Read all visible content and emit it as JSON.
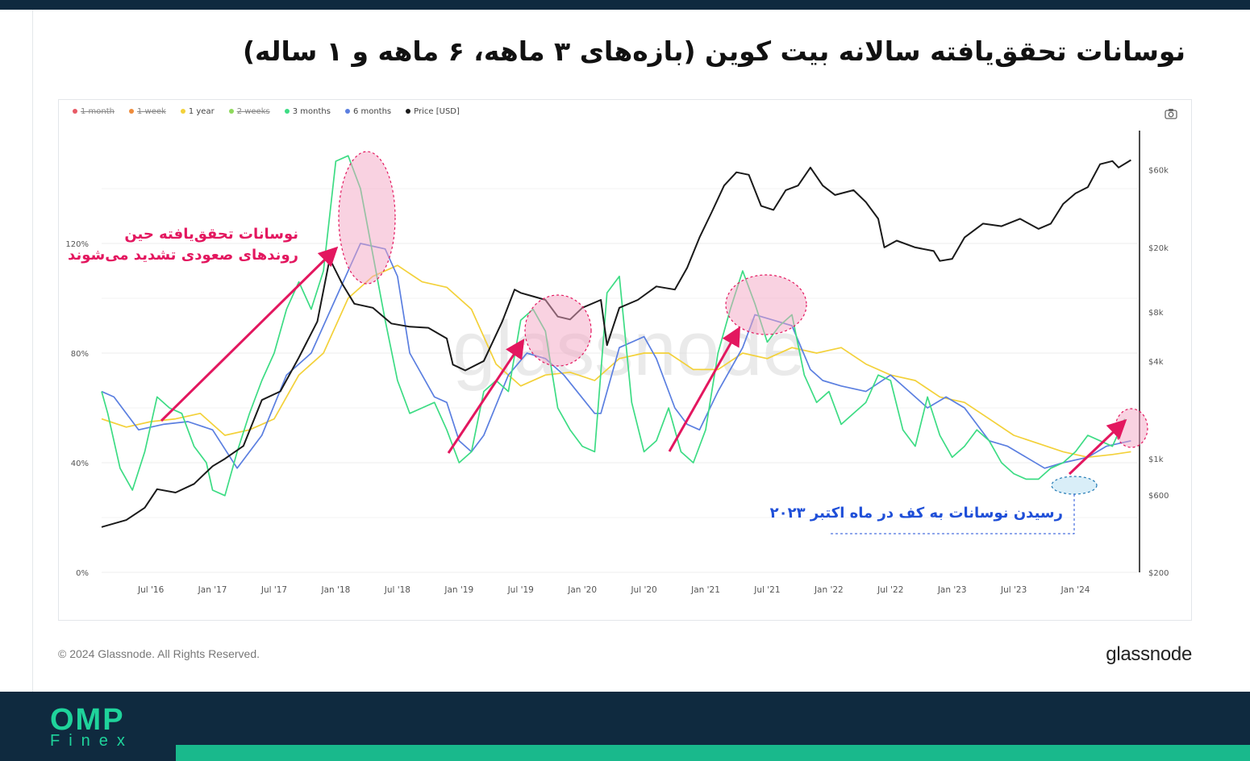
{
  "title": "نوسانات تحقق‌یافته سالانه بیت کوین (بازه‌های ۳ ماهه، ۶ ماهه و ۱ ساله)",
  "annotations": {
    "rising": [
      "نوسانات تحقق‌یافته حین",
      "روندهای صعودی تشدید می‌شوند"
    ],
    "bottom": "رسیدن نوسانات به کف در ماه اکتبر ۲۰۲۳"
  },
  "watermark": "glassnode",
  "copyright": "© 2024 Glassnode. All Rights Reserved.",
  "brand_logo": "glassnode",
  "footer_logo": {
    "main": "OMP",
    "sub": "Finex"
  },
  "colors": {
    "vol_1y": "#f3d13a",
    "vol_3m": "#3ddc84",
    "vol_6m": "#5b7fe0",
    "price": "#1a1a1a",
    "highlight": "#e3175f",
    "highlight_blue": "#1f4fd8",
    "brand_dark": "#0f2a3f",
    "brand_green": "#1fd39b"
  },
  "chart_data": {
    "type": "line",
    "legend": [
      {
        "name": "1 month",
        "color": "#e85a66",
        "enabled": false
      },
      {
        "name": "1 week",
        "color": "#ef8c3c",
        "enabled": false
      },
      {
        "name": "1 year",
        "color": "#f3d13a",
        "enabled": true
      },
      {
        "name": "2 weeks",
        "color": "#8ed95c",
        "enabled": false
      },
      {
        "name": "3 months",
        "color": "#3ddc84",
        "enabled": true
      },
      {
        "name": "6 months",
        "color": "#5b7fe0",
        "enabled": true
      },
      {
        "name": "Price [USD]",
        "color": "#1a1a1a",
        "enabled": true
      }
    ],
    "x_labels": [
      "Jul '16",
      "Jan '17",
      "Jul '17",
      "Jan '18",
      "Jul '18",
      "Jan '19",
      "Jul '19",
      "Jan '20",
      "Jul '20",
      "Jan '21",
      "Jul '21",
      "Jan '22",
      "Jul '22",
      "Jan '23",
      "Jul '23",
      "Jan '24"
    ],
    "x_range": [
      2016.1,
      2024.5
    ],
    "y_left": {
      "ticks": [
        "0%",
        "40%",
        "80%",
        "120%"
      ],
      "values": [
        0,
        40,
        80,
        120
      ],
      "range": [
        0,
        160
      ]
    },
    "y_right": {
      "scale": "log",
      "ticks": [
        "$200",
        "$600",
        "$1k",
        "$4k",
        "$8k",
        "$20k",
        "$60k"
      ],
      "values": [
        200,
        600,
        1000,
        4000,
        8000,
        20000,
        60000
      ],
      "range": [
        200,
        100000
      ]
    },
    "series": [
      {
        "name": "1 year",
        "axis": "left",
        "points": [
          [
            2016.1,
            56
          ],
          [
            2016.3,
            53
          ],
          [
            2016.5,
            55
          ],
          [
            2016.7,
            56
          ],
          [
            2016.9,
            58
          ],
          [
            2017.1,
            50
          ],
          [
            2017.3,
            52
          ],
          [
            2017.5,
            56
          ],
          [
            2017.7,
            72
          ],
          [
            2017.9,
            80
          ],
          [
            2018.1,
            100
          ],
          [
            2018.3,
            108
          ],
          [
            2018.5,
            112
          ],
          [
            2018.7,
            106
          ],
          [
            2018.9,
            104
          ],
          [
            2019.1,
            96
          ],
          [
            2019.3,
            76
          ],
          [
            2019.5,
            68
          ],
          [
            2019.7,
            72
          ],
          [
            2019.9,
            73
          ],
          [
            2020.1,
            70
          ],
          [
            2020.3,
            78
          ],
          [
            2020.5,
            80
          ],
          [
            2020.7,
            80
          ],
          [
            2020.9,
            74
          ],
          [
            2021.1,
            74
          ],
          [
            2021.3,
            80
          ],
          [
            2021.5,
            78
          ],
          [
            2021.7,
            82
          ],
          [
            2021.9,
            80
          ],
          [
            2022.1,
            82
          ],
          [
            2022.3,
            76
          ],
          [
            2022.5,
            72
          ],
          [
            2022.7,
            70
          ],
          [
            2022.9,
            64
          ],
          [
            2023.1,
            62
          ],
          [
            2023.3,
            56
          ],
          [
            2023.5,
            50
          ],
          [
            2023.7,
            47
          ],
          [
            2023.9,
            44
          ],
          [
            2024.1,
            42
          ],
          [
            2024.3,
            43
          ],
          [
            2024.45,
            44
          ]
        ]
      },
      {
        "name": "6 months",
        "axis": "left",
        "points": [
          [
            2016.1,
            66
          ],
          [
            2016.2,
            64
          ],
          [
            2016.4,
            52
          ],
          [
            2016.6,
            54
          ],
          [
            2016.8,
            55
          ],
          [
            2017.0,
            52
          ],
          [
            2017.2,
            38
          ],
          [
            2017.4,
            50
          ],
          [
            2017.6,
            72
          ],
          [
            2017.8,
            80
          ],
          [
            2018.0,
            100
          ],
          [
            2018.2,
            120
          ],
          [
            2018.4,
            118
          ],
          [
            2018.5,
            108
          ],
          [
            2018.6,
            80
          ],
          [
            2018.8,
            64
          ],
          [
            2018.9,
            62
          ],
          [
            2019.0,
            48
          ],
          [
            2019.1,
            44
          ],
          [
            2019.2,
            50
          ],
          [
            2019.4,
            72
          ],
          [
            2019.55,
            80
          ],
          [
            2019.7,
            78
          ],
          [
            2019.85,
            72
          ],
          [
            2020.1,
            58
          ],
          [
            2020.15,
            58
          ],
          [
            2020.3,
            82
          ],
          [
            2020.5,
            86
          ],
          [
            2020.6,
            78
          ],
          [
            2020.75,
            60
          ],
          [
            2020.85,
            54
          ],
          [
            2020.95,
            52
          ],
          [
            2021.1,
            66
          ],
          [
            2021.3,
            82
          ],
          [
            2021.4,
            94
          ],
          [
            2021.55,
            92
          ],
          [
            2021.7,
            90
          ],
          [
            2021.85,
            74
          ],
          [
            2021.95,
            70
          ],
          [
            2022.1,
            68
          ],
          [
            2022.3,
            66
          ],
          [
            2022.5,
            72
          ],
          [
            2022.7,
            64
          ],
          [
            2022.8,
            60
          ],
          [
            2022.95,
            64
          ],
          [
            2023.1,
            60
          ],
          [
            2023.3,
            48
          ],
          [
            2023.45,
            46
          ],
          [
            2023.6,
            42
          ],
          [
            2023.75,
            38
          ],
          [
            2023.9,
            40
          ],
          [
            2024.1,
            42
          ],
          [
            2024.25,
            46
          ],
          [
            2024.45,
            48
          ]
        ]
      },
      {
        "name": "3 months",
        "axis": "left",
        "points": [
          [
            2016.1,
            66
          ],
          [
            2016.15,
            58
          ],
          [
            2016.25,
            38
          ],
          [
            2016.35,
            30
          ],
          [
            2016.45,
            44
          ],
          [
            2016.55,
            64
          ],
          [
            2016.65,
            60
          ],
          [
            2016.75,
            58
          ],
          [
            2016.85,
            46
          ],
          [
            2016.95,
            40
          ],
          [
            2017.0,
            30
          ],
          [
            2017.1,
            28
          ],
          [
            2017.2,
            44
          ],
          [
            2017.3,
            58
          ],
          [
            2017.4,
            70
          ],
          [
            2017.5,
            80
          ],
          [
            2017.6,
            96
          ],
          [
            2017.7,
            106
          ],
          [
            2017.8,
            96
          ],
          [
            2017.9,
            110
          ],
          [
            2018.0,
            150
          ],
          [
            2018.1,
            152
          ],
          [
            2018.2,
            140
          ],
          [
            2018.3,
            116
          ],
          [
            2018.4,
            92
          ],
          [
            2018.5,
            70
          ],
          [
            2018.6,
            58
          ],
          [
            2018.7,
            60
          ],
          [
            2018.8,
            62
          ],
          [
            2018.9,
            52
          ],
          [
            2019.0,
            40
          ],
          [
            2019.1,
            44
          ],
          [
            2019.2,
            66
          ],
          [
            2019.3,
            70
          ],
          [
            2019.4,
            66
          ],
          [
            2019.5,
            92
          ],
          [
            2019.6,
            96
          ],
          [
            2019.7,
            88
          ],
          [
            2019.8,
            60
          ],
          [
            2019.9,
            52
          ],
          [
            2020.0,
            46
          ],
          [
            2020.1,
            44
          ],
          [
            2020.2,
            102
          ],
          [
            2020.3,
            108
          ],
          [
            2020.4,
            62
          ],
          [
            2020.5,
            44
          ],
          [
            2020.6,
            48
          ],
          [
            2020.7,
            60
          ],
          [
            2020.8,
            44
          ],
          [
            2020.9,
            40
          ],
          [
            2021.0,
            52
          ],
          [
            2021.1,
            80
          ],
          [
            2021.2,
            96
          ],
          [
            2021.3,
            110
          ],
          [
            2021.4,
            98
          ],
          [
            2021.5,
            84
          ],
          [
            2021.6,
            90
          ],
          [
            2021.7,
            94
          ],
          [
            2021.8,
            72
          ],
          [
            2021.9,
            62
          ],
          [
            2022.0,
            66
          ],
          [
            2022.1,
            54
          ],
          [
            2022.2,
            58
          ],
          [
            2022.3,
            62
          ],
          [
            2022.4,
            72
          ],
          [
            2022.5,
            70
          ],
          [
            2022.6,
            52
          ],
          [
            2022.7,
            46
          ],
          [
            2022.8,
            64
          ],
          [
            2022.9,
            50
          ],
          [
            2023.0,
            42
          ],
          [
            2023.1,
            46
          ],
          [
            2023.2,
            52
          ],
          [
            2023.3,
            48
          ],
          [
            2023.4,
            40
          ],
          [
            2023.5,
            36
          ],
          [
            2023.6,
            34
          ],
          [
            2023.7,
            34
          ],
          [
            2023.8,
            38
          ],
          [
            2023.9,
            40
          ],
          [
            2024.0,
            44
          ],
          [
            2024.1,
            50
          ],
          [
            2024.2,
            48
          ],
          [
            2024.3,
            46
          ],
          [
            2024.4,
            56
          ]
        ]
      },
      {
        "name": "Price [USD]",
        "axis": "right",
        "points": [
          [
            2016.1,
            380
          ],
          [
            2016.3,
            420
          ],
          [
            2016.45,
            500
          ],
          [
            2016.55,
            650
          ],
          [
            2016.7,
            620
          ],
          [
            2016.85,
            700
          ],
          [
            2017.0,
            900
          ],
          [
            2017.1,
            1000
          ],
          [
            2017.25,
            1200
          ],
          [
            2017.4,
            2300
          ],
          [
            2017.55,
            2600
          ],
          [
            2017.7,
            4200
          ],
          [
            2017.85,
            7000
          ],
          [
            2017.95,
            17000
          ],
          [
            2018.05,
            12000
          ],
          [
            2018.15,
            9000
          ],
          [
            2018.3,
            8500
          ],
          [
            2018.45,
            6800
          ],
          [
            2018.6,
            6500
          ],
          [
            2018.75,
            6400
          ],
          [
            2018.9,
            5500
          ],
          [
            2018.95,
            3800
          ],
          [
            2019.05,
            3500
          ],
          [
            2019.2,
            4000
          ],
          [
            2019.35,
            7000
          ],
          [
            2019.45,
            11000
          ],
          [
            2019.5,
            10500
          ],
          [
            2019.6,
            10000
          ],
          [
            2019.7,
            9500
          ],
          [
            2019.8,
            7500
          ],
          [
            2019.9,
            7200
          ],
          [
            2020.0,
            8500
          ],
          [
            2020.15,
            9500
          ],
          [
            2020.2,
            5000
          ],
          [
            2020.3,
            8500
          ],
          [
            2020.45,
            9500
          ],
          [
            2020.6,
            11500
          ],
          [
            2020.75,
            11000
          ],
          [
            2020.85,
            15000
          ],
          [
            2020.95,
            23000
          ],
          [
            2021.05,
            33000
          ],
          [
            2021.15,
            48000
          ],
          [
            2021.25,
            58000
          ],
          [
            2021.35,
            56000
          ],
          [
            2021.45,
            36000
          ],
          [
            2021.55,
            34000
          ],
          [
            2021.65,
            45000
          ],
          [
            2021.75,
            48000
          ],
          [
            2021.85,
            62000
          ],
          [
            2021.95,
            48000
          ],
          [
            2022.05,
            42000
          ],
          [
            2022.2,
            45000
          ],
          [
            2022.3,
            38000
          ],
          [
            2022.4,
            30000
          ],
          [
            2022.45,
            20000
          ],
          [
            2022.55,
            22000
          ],
          [
            2022.7,
            20000
          ],
          [
            2022.85,
            19000
          ],
          [
            2022.9,
            16500
          ],
          [
            2023.0,
            17000
          ],
          [
            2023.1,
            23000
          ],
          [
            2023.25,
            28000
          ],
          [
            2023.4,
            27000
          ],
          [
            2023.55,
            30000
          ],
          [
            2023.7,
            26000
          ],
          [
            2023.8,
            28000
          ],
          [
            2023.9,
            37000
          ],
          [
            2024.0,
            43000
          ],
          [
            2024.1,
            47000
          ],
          [
            2024.2,
            65000
          ],
          [
            2024.3,
            68000
          ],
          [
            2024.35,
            62000
          ],
          [
            2024.45,
            69000
          ]
        ]
      }
    ]
  }
}
